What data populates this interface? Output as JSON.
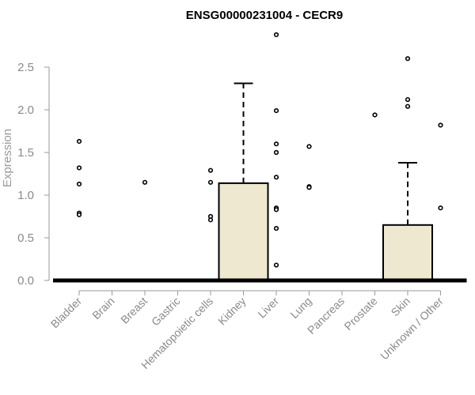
{
  "chart_data": {
    "type": "box",
    "title": "ENSG00000231004 - CECR9",
    "xlabel": "",
    "ylabel": "Expression",
    "ylim": [
      0,
      2.7
    ],
    "yticks": [
      0.0,
      0.5,
      1.0,
      1.5,
      2.0,
      2.5
    ],
    "ytick_labels": [
      "0.0",
      "0.5",
      "1.0",
      "1.5",
      "2.0",
      "2.5"
    ],
    "box_color": "#ede8cf",
    "categories": [
      "Bladder",
      "Brain",
      "Breast",
      "Gastric",
      "Hematopoietic cells",
      "Kidney",
      "Liver",
      "Lung",
      "Pancreas",
      "Prostate",
      "Skin",
      "Unknown / Other"
    ],
    "boxes": [
      {
        "category": "Bladder",
        "q1": 0,
        "median": 0,
        "q3": 0,
        "whisker_low": 0,
        "whisker_high": 0,
        "outliers": [
          1.63,
          1.32,
          1.13,
          0.79,
          0.77
        ]
      },
      {
        "category": "Brain",
        "q1": 0,
        "median": 0,
        "q3": 0,
        "whisker_low": 0,
        "whisker_high": 0,
        "outliers": []
      },
      {
        "category": "Breast",
        "q1": 0,
        "median": 0,
        "q3": 0,
        "whisker_low": 0,
        "whisker_high": 0,
        "outliers": [
          1.15
        ]
      },
      {
        "category": "Gastric",
        "q1": 0,
        "median": 0,
        "q3": 0,
        "whisker_low": 0,
        "whisker_high": 0,
        "outliers": []
      },
      {
        "category": "Hematopoietic cells",
        "q1": 0,
        "median": 0,
        "q3": 0,
        "whisker_low": 0,
        "whisker_high": 0,
        "outliers": [
          1.29,
          1.15,
          0.75,
          0.71
        ]
      },
      {
        "category": "Kidney",
        "q1": 0,
        "median": 0,
        "q3": 1.14,
        "whisker_low": 0,
        "whisker_high": 2.31,
        "outliers": []
      },
      {
        "category": "Liver",
        "q1": 0,
        "median": 0,
        "q3": 0,
        "whisker_low": 0,
        "whisker_high": 0,
        "outliers": [
          2.88,
          1.99,
          1.6,
          1.5,
          1.21,
          0.85,
          0.83,
          0.61,
          0.18
        ]
      },
      {
        "category": "Lung",
        "q1": 0,
        "median": 0,
        "q3": 0,
        "whisker_low": 0,
        "whisker_high": 0,
        "outliers": [
          1.57,
          1.1,
          1.09
        ]
      },
      {
        "category": "Pancreas",
        "q1": 0,
        "median": 0,
        "q3": 0,
        "whisker_low": 0,
        "whisker_high": 0,
        "outliers": []
      },
      {
        "category": "Prostate",
        "q1": 0,
        "median": 0,
        "q3": 0,
        "whisker_low": 0,
        "whisker_high": 0,
        "outliers": [
          1.94
        ]
      },
      {
        "category": "Skin",
        "q1": 0,
        "median": 0,
        "q3": 0.65,
        "whisker_low": 0,
        "whisker_high": 1.38,
        "outliers": [
          2.6,
          2.12,
          2.04
        ]
      },
      {
        "category": "Unknown / Other",
        "q1": 0,
        "median": 0,
        "q3": 0,
        "whisker_low": 0,
        "whisker_high": 0,
        "outliers": [
          1.82,
          0.85
        ]
      }
    ]
  }
}
